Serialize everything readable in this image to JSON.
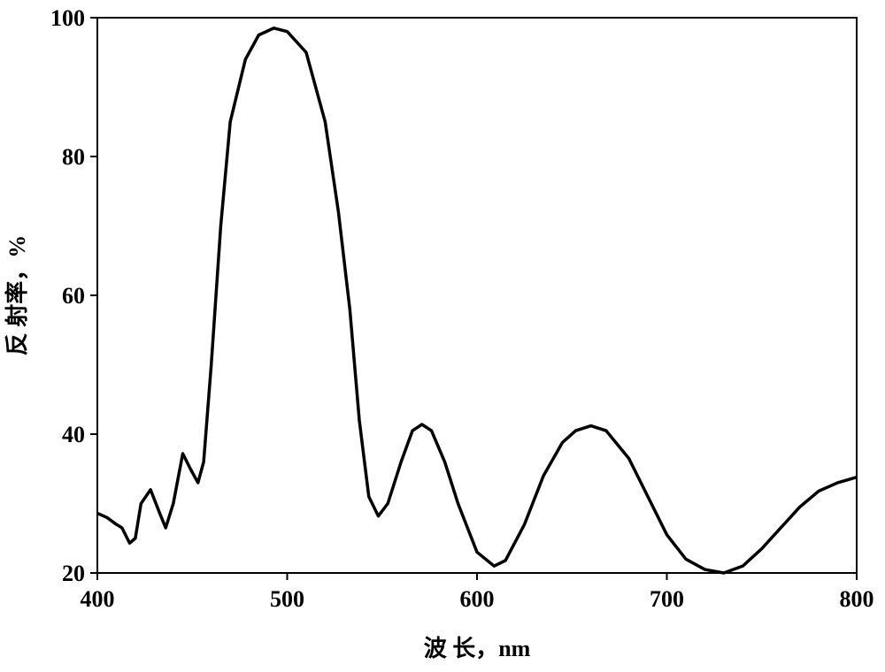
{
  "chart_data": {
    "type": "line",
    "x_label": "波 长，nm",
    "y_label": "反 射率，%",
    "xlim": [
      400,
      800
    ],
    "xticks": [
      400,
      500,
      600,
      700,
      800
    ],
    "ylim": [
      20,
      100
    ],
    "yticks": [
      20,
      40,
      60,
      80,
      100
    ],
    "series": [
      {
        "color": "#000000",
        "x": [
          400,
          405,
          410,
          413,
          417,
          420,
          423,
          428,
          433,
          436,
          440,
          445,
          449,
          453,
          456,
          460,
          465,
          470,
          478,
          485,
          493,
          500,
          510,
          520,
          527,
          533,
          538,
          543,
          548,
          553,
          560,
          566,
          571,
          576,
          583,
          590,
          600,
          609,
          615,
          625,
          635,
          645,
          652,
          660,
          668,
          680,
          690,
          700,
          710,
          720,
          730,
          740,
          750,
          760,
          770,
          780,
          790,
          800
        ],
        "values": [
          28.6,
          28,
          27,
          26.5,
          24.3,
          25,
          30,
          32,
          28.5,
          26.5,
          30,
          37.2,
          35,
          33,
          36,
          50,
          70,
          85,
          94,
          97.5,
          98.5,
          98,
          95,
          85,
          72,
          58,
          42,
          31,
          28.2,
          30,
          36,
          40.5,
          41.4,
          40.5,
          36,
          30,
          23,
          21,
          21.8,
          27,
          34,
          38.8,
          40.5,
          41.2,
          40.5,
          36.5,
          31,
          25.5,
          22,
          20.5,
          20,
          21,
          23.5,
          26.5,
          29.5,
          31.8,
          33,
          33.8
        ]
      }
    ]
  }
}
